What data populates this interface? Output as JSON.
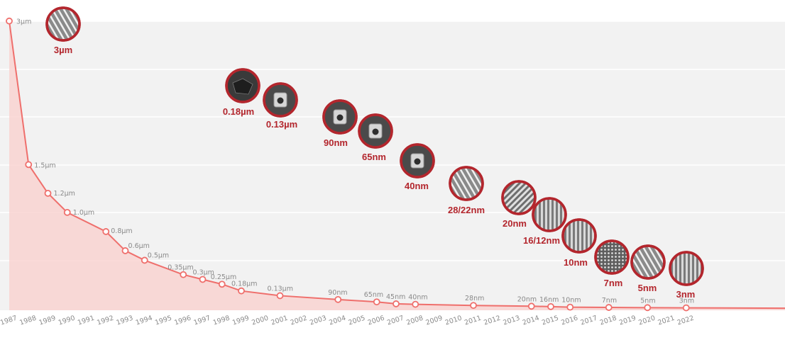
{
  "chart_data": {
    "type": "line",
    "title": "",
    "xlabel": "",
    "ylabel": "",
    "x_tick_labels": [
      "1987",
      "1988",
      "1989",
      "1990",
      "1991",
      "1992",
      "1993",
      "1994",
      "1995",
      "1996",
      "1997",
      "1998",
      "1999",
      "2000",
      "2001",
      "2002",
      "2003",
      "2004",
      "2005",
      "2006",
      "2007",
      "2008",
      "2009",
      "2010",
      "2011",
      "2012",
      "2013",
      "2014",
      "2015",
      "2016",
      "2017",
      "2018",
      "2019",
      "2020",
      "2021",
      "2022"
    ],
    "series": [
      {
        "points": [
          {
            "year": 1987,
            "value_nm": 3000,
            "label": "3µm"
          },
          {
            "year": 1988,
            "value_nm": 1500,
            "label": "1.5µm"
          },
          {
            "year": 1989,
            "value_nm": 1200,
            "label": "1.2µm"
          },
          {
            "year": 1990,
            "value_nm": 1000,
            "label": "1.0µm"
          },
          {
            "year": 1992,
            "value_nm": 800,
            "label": "0.8µm"
          },
          {
            "year": 1993,
            "value_nm": 600,
            "label": "0.6µm"
          },
          {
            "year": 1994,
            "value_nm": 500,
            "label": "0.5µm"
          },
          {
            "year": 1996,
            "value_nm": 350,
            "label": "0.35µm"
          },
          {
            "year": 1997,
            "value_nm": 300,
            "label": "0.3µm"
          },
          {
            "year": 1998,
            "value_nm": 250,
            "label": "0.25µm"
          },
          {
            "year": 1999,
            "value_nm": 180,
            "label": "0.18µm"
          },
          {
            "year": 2001,
            "value_nm": 130,
            "label": "0.13µm"
          },
          {
            "year": 2004,
            "value_nm": 90,
            "label": "90nm"
          },
          {
            "year": 2006,
            "value_nm": 65,
            "label": "65nm"
          },
          {
            "year": 2007,
            "value_nm": 45,
            "label": "45nm"
          },
          {
            "year": 2008,
            "value_nm": 40,
            "label": "40nm"
          },
          {
            "year": 2011,
            "value_nm": 28,
            "label": "28nm"
          },
          {
            "year": 2014,
            "value_nm": 20,
            "label": "20nm"
          },
          {
            "year": 2015,
            "value_nm": 16,
            "label": "16nm"
          },
          {
            "year": 2016,
            "value_nm": 10,
            "label": "10nm"
          },
          {
            "year": 2018,
            "value_nm": 7,
            "label": "7nm"
          },
          {
            "year": 2020,
            "value_nm": 5,
            "label": "5nm"
          },
          {
            "year": 2022,
            "value_nm": 3,
            "label": "3nm"
          }
        ]
      }
    ],
    "node_images": [
      {
        "label": "3µm",
        "icon": "transistor-cross-section-3um-icon"
      },
      {
        "label": "0.18µm",
        "icon": "transistor-cross-section-0.18um-icon"
      },
      {
        "label": "0.13µm",
        "icon": "transistor-cross-section-0.13um-icon"
      },
      {
        "label": "90nm",
        "icon": "transistor-cross-section-90nm-icon"
      },
      {
        "label": "65nm",
        "icon": "transistor-cross-section-65nm-icon"
      },
      {
        "label": "40nm",
        "icon": "transistor-cross-section-40nm-icon"
      },
      {
        "label": "28/22nm",
        "icon": "finfet-fins-28-22nm-icon"
      },
      {
        "label": "20nm",
        "icon": "finfet-fins-20nm-icon"
      },
      {
        "label": "16/12nm",
        "icon": "finfet-fins-16-12nm-icon"
      },
      {
        "label": "10nm",
        "icon": "finfet-fins-10nm-icon"
      },
      {
        "label": "7nm",
        "icon": "finfet-fins-7nm-icon"
      },
      {
        "label": "5nm",
        "icon": "finfet-fins-5nm-icon"
      },
      {
        "label": "3nm",
        "icon": "finfet-fins-3nm-icon"
      }
    ],
    "grid": true,
    "colors": {
      "line": "#ef6f6c",
      "area_fill": "#f9d3d1",
      "marker_fill": "#ffffff",
      "label_text": "#8a8a8a",
      "node_label_text": "#b3262d",
      "image_ring": "#b3262d",
      "plot_background": "#f2f2f2"
    }
  }
}
